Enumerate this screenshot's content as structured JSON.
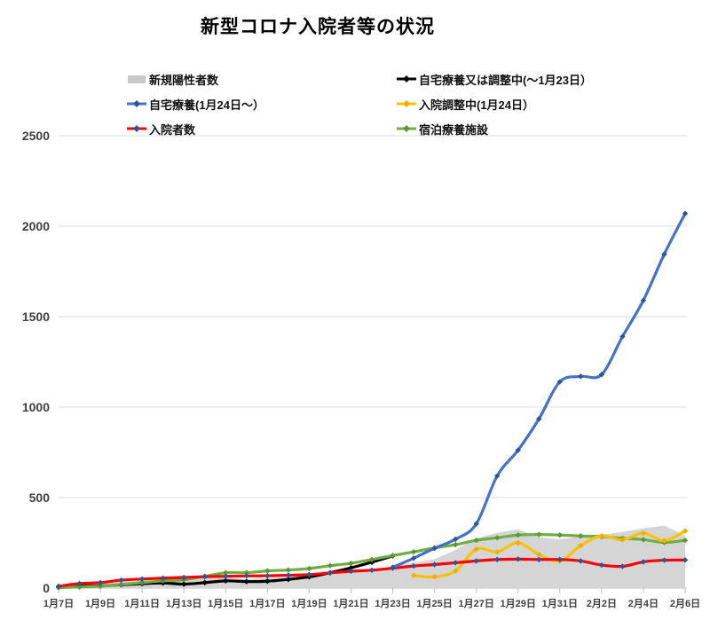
{
  "title": "新型コロナ入院者等の状況",
  "legend": {
    "items": [
      {
        "label": "新規陽性者数",
        "type": "area",
        "color": "#C9C9C9"
      },
      {
        "label": "自宅療養又は調整中(〜1月23日）",
        "type": "line",
        "color": "#000000",
        "marker_color": "#000000"
      },
      {
        "label": "自宅療養(1月24日〜）",
        "type": "line",
        "color": "#4472C4",
        "marker_color": "#2E5597"
      },
      {
        "label": "入院調整中(1月24日）",
        "type": "line",
        "color": "#FFC000",
        "marker_color": "#EDB000"
      },
      {
        "label": "入院者数",
        "type": "line",
        "color": "#FF0000",
        "marker_color": "#2E5597"
      },
      {
        "label": "宿泊療養施設",
        "type": "line",
        "color": "#70AD47",
        "marker_color": "#5E9638"
      }
    ]
  },
  "chart_data": {
    "type": "area+line",
    "title": "新型コロナ入院者等の状況",
    "xlabel": "",
    "ylabel": "",
    "ylim": [
      0,
      2500
    ],
    "yticks": [
      0,
      500,
      1000,
      1500,
      2000,
      2500
    ],
    "grid": true,
    "legend_position": "top",
    "x": [
      "1月7日",
      "1月8日",
      "1月9日",
      "1月10日",
      "1月11日",
      "1月12日",
      "1月13日",
      "1月14日",
      "1月15日",
      "1月16日",
      "1月17日",
      "1月18日",
      "1月19日",
      "1月20日",
      "1月21日",
      "1月22日",
      "1月23日",
      "1月24日",
      "1月25日",
      "1月26日",
      "1月27日",
      "1月28日",
      "1月29日",
      "1月30日",
      "1月31日",
      "2月1日",
      "2月2日",
      "2月3日",
      "2月4日",
      "2月5日",
      "2月6日"
    ],
    "x_tick_labels": [
      "1月7日",
      "1月9日",
      "1月11日",
      "1月13日",
      "1月15日",
      "1月17日",
      "1月19日",
      "1月21日",
      "1月23日",
      "1月25日",
      "1月27日",
      "1月29日",
      "1月31日",
      "2月2日",
      "2月4日",
      "2月6日"
    ],
    "series": [
      {
        "name": "新規陽性者数",
        "type": "area",
        "color": "#D5D5D5",
        "values": [
          15,
          20,
          25,
          35,
          40,
          45,
          50,
          55,
          55,
          50,
          55,
          60,
          70,
          80,
          90,
          100,
          120,
          140,
          160,
          210,
          275,
          305,
          325,
          280,
          270,
          285,
          295,
          310,
          330,
          345,
          290
        ]
      },
      {
        "name": "自宅療養又は調整中(〜1月23日）",
        "type": "line",
        "color": "#000000",
        "marker_color": "#000000",
        "values": [
          8,
          10,
          12,
          18,
          24,
          28,
          22,
          30,
          40,
          36,
          38,
          48,
          62,
          85,
          112,
          143,
          178,
          null,
          null,
          null,
          null,
          null,
          null,
          null,
          null,
          null,
          null,
          null,
          null,
          null,
          null
        ]
      },
      {
        "name": "宿泊療養施設",
        "type": "line",
        "color": "#70AD47",
        "marker_color": "#5E9638",
        "values": [
          2,
          6,
          10,
          20,
          30,
          40,
          46,
          65,
          85,
          85,
          95,
          100,
          108,
          124,
          137,
          158,
          180,
          200,
          222,
          240,
          264,
          278,
          293,
          296,
          293,
          288,
          284,
          275,
          268,
          252,
          264
        ]
      },
      {
        "name": "入院調整中(1月24日）",
        "type": "line",
        "color": "#FFC000",
        "marker_color": "#EDB000",
        "values": [
          null,
          null,
          null,
          null,
          null,
          null,
          null,
          null,
          null,
          null,
          null,
          null,
          null,
          null,
          null,
          null,
          null,
          70,
          62,
          95,
          215,
          200,
          250,
          185,
          150,
          235,
          288,
          267,
          304,
          262,
          316
        ]
      },
      {
        "name": "入院者数",
        "type": "line",
        "color": "#FF0000",
        "marker_color": "#2E5597",
        "values": [
          10,
          25,
          30,
          44,
          50,
          55,
          59,
          63,
          65,
          67,
          68,
          71,
          74,
          84,
          93,
          99,
          110,
          122,
          130,
          140,
          150,
          158,
          160,
          158,
          158,
          150,
          127,
          120,
          145,
          154,
          155
        ]
      },
      {
        "name": "自宅療養(1月24日〜）",
        "type": "line",
        "color": "#4472C4",
        "marker_color": "#2E5597",
        "values": [
          null,
          null,
          null,
          null,
          null,
          null,
          null,
          null,
          null,
          null,
          null,
          null,
          null,
          null,
          null,
          null,
          115,
          165,
          220,
          270,
          355,
          620,
          762,
          935,
          1140,
          1170,
          1180,
          1390,
          1590,
          1845,
          2070
        ]
      }
    ]
  }
}
